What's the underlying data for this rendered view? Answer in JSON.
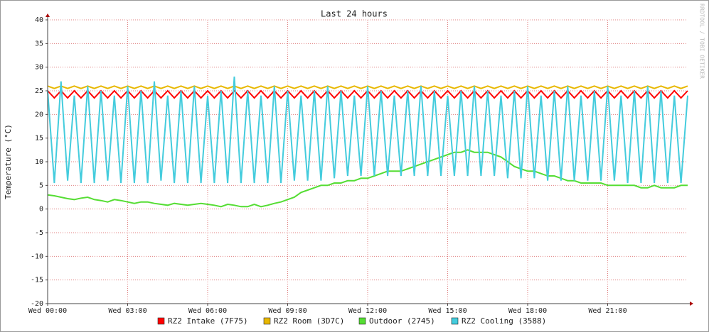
{
  "chart_data": {
    "type": "line",
    "title": "Last 24 hours",
    "y_label": "Temperature (°C)",
    "watermark": "RRDTOOL / TOBI OETIKER",
    "xlim": [
      0,
      24
    ],
    "xticks": [
      {
        "value": 0,
        "label": "Wed 00:00"
      },
      {
        "value": 3,
        "label": "Wed 03:00"
      },
      {
        "value": 6,
        "label": "Wed 06:00"
      },
      {
        "value": 9,
        "label": "Wed 09:00"
      },
      {
        "value": 12,
        "label": "Wed 12:00"
      },
      {
        "value": 15,
        "label": "Wed 15:00"
      },
      {
        "value": 18,
        "label": "Wed 18:00"
      },
      {
        "value": 21,
        "label": "Wed 21:00"
      }
    ],
    "ylim": [
      -20,
      40
    ],
    "yticks": [
      -20,
      -15,
      -10,
      -5,
      0,
      5,
      10,
      15,
      20,
      25,
      30,
      35,
      40
    ],
    "grid": true,
    "legend": "bottom",
    "x": [
      0,
      0.25,
      0.5,
      0.75,
      1,
      1.25,
      1.5,
      1.75,
      2,
      2.25,
      2.5,
      2.75,
      3,
      3.25,
      3.5,
      3.75,
      4,
      4.25,
      4.5,
      4.75,
      5,
      5.25,
      5.5,
      5.75,
      6,
      6.25,
      6.5,
      6.75,
      7,
      7.25,
      7.5,
      7.75,
      8,
      8.25,
      8.5,
      8.75,
      9,
      9.25,
      9.5,
      9.75,
      10,
      10.25,
      10.5,
      10.75,
      11,
      11.25,
      11.5,
      11.75,
      12,
      12.25,
      12.5,
      12.75,
      13,
      13.25,
      13.5,
      13.75,
      14,
      14.25,
      14.5,
      14.75,
      15,
      15.25,
      15.5,
      15.75,
      16,
      16.25,
      16.5,
      16.75,
      17,
      17.25,
      17.5,
      17.75,
      18,
      18.25,
      18.5,
      18.75,
      19,
      19.25,
      19.5,
      19.75,
      20,
      20.25,
      20.5,
      20.75,
      21,
      21.25,
      21.5,
      21.75,
      22,
      22.25,
      22.5,
      22.75,
      23,
      23.25,
      23.5,
      23.75,
      24
    ],
    "series": [
      {
        "name": "RZ2 Intake (7F75)",
        "color": "#ff0000",
        "values": [
          25,
          23.5,
          25,
          23.5,
          25,
          23.5,
          25,
          23.5,
          25,
          23.5,
          25,
          23.5,
          25,
          23.5,
          25,
          23.5,
          25,
          23.5,
          25,
          23.5,
          25,
          23.5,
          25,
          23.5,
          25,
          23.5,
          25,
          23.5,
          25,
          23.5,
          25,
          23.5,
          25,
          23.5,
          25,
          23.5,
          25,
          23.5,
          25,
          23.5,
          25,
          23.5,
          25,
          23.5,
          25,
          23.5,
          25,
          23.5,
          25,
          23.5,
          25,
          23.5,
          25,
          23.5,
          25,
          23.5,
          25,
          23.5,
          25,
          23.5,
          25,
          23.5,
          25,
          23.5,
          25,
          23.5,
          25,
          23.5,
          25,
          23.5,
          25,
          23.5,
          25,
          23.5,
          25,
          23.5,
          25,
          23.5,
          25,
          23.5,
          25,
          23.5,
          25,
          23.5,
          25,
          23.5,
          25,
          23.5,
          25,
          23.5,
          25,
          23.5,
          25,
          23.5,
          25,
          23.5,
          25
        ]
      },
      {
        "name": "RZ2 Room (3D7C)",
        "color": "#e8b800",
        "values": [
          26,
          25.5,
          26,
          25.5,
          26,
          25.5,
          26,
          25.5,
          26,
          25.5,
          26,
          25.5,
          26,
          25.5,
          26,
          25.5,
          26,
          25.5,
          26,
          25.5,
          26,
          25.5,
          26,
          25.5,
          26,
          25.5,
          26,
          25.5,
          26,
          25.5,
          26,
          25.5,
          26,
          25.5,
          26,
          25.5,
          26,
          25.5,
          26,
          25.5,
          26,
          25.5,
          26,
          25.5,
          26,
          25.5,
          26,
          25.5,
          26,
          25.5,
          26,
          25.5,
          26,
          25.5,
          26,
          25.5,
          26,
          25.5,
          26,
          25.5,
          26,
          25.5,
          26,
          25.5,
          26,
          25.5,
          26,
          25.5,
          26,
          25.5,
          26,
          25.5,
          26,
          25.5,
          26,
          25.5,
          26,
          25.5,
          26,
          25.5,
          26,
          25.5,
          26,
          25.5,
          26,
          25.5,
          26,
          25.5,
          26,
          25.5,
          26,
          25.5,
          26,
          25.5,
          26,
          25.5,
          26
        ]
      },
      {
        "name": "Outdoor (2745)",
        "color": "#55dd33",
        "values": [
          3,
          2.8,
          2.5,
          2.2,
          2,
          2.3,
          2.5,
          2,
          1.8,
          1.5,
          2,
          1.8,
          1.5,
          1.2,
          1.5,
          1.5,
          1.2,
          1,
          0.8,
          1.2,
          1,
          0.8,
          1,
          1.2,
          1,
          0.8,
          0.5,
          1,
          0.8,
          0.5,
          0.5,
          1,
          0.5,
          0.8,
          1.2,
          1.5,
          2,
          2.5,
          3.5,
          4,
          4.5,
          5,
          5,
          5.5,
          5.5,
          6,
          6,
          6.5,
          6.5,
          7,
          7.5,
          8,
          8,
          8,
          8.5,
          9,
          9.5,
          10,
          10.5,
          11,
          11.5,
          12,
          12,
          12.5,
          12,
          12,
          12,
          11.5,
          11,
          10,
          9,
          8.5,
          8,
          8,
          7.5,
          7,
          7,
          6.5,
          6,
          6,
          5.5,
          5.5,
          5.5,
          5.5,
          5,
          5,
          5,
          5,
          5,
          4.5,
          4.5,
          5,
          4.5,
          4.5,
          4.5,
          5,
          5
        ]
      },
      {
        "name": "RZ2 Cooling (3588)",
        "color": "#44ccdd",
        "values": [
          25,
          5.5,
          27,
          6,
          24,
          5.5,
          26,
          5.5,
          25,
          6,
          24,
          5.5,
          26,
          5.5,
          25,
          5.5,
          27,
          6,
          24,
          5.5,
          25,
          5.5,
          26,
          5.5,
          24,
          5.5,
          25,
          5.5,
          28,
          5.5,
          25,
          5.5,
          24,
          5.5,
          26,
          5.5,
          25,
          6,
          24,
          6,
          25,
          6,
          26,
          6.5,
          25,
          7,
          24,
          7,
          26,
          7,
          25,
          7,
          24,
          7,
          25,
          7,
          26,
          7,
          25,
          7,
          24,
          7,
          25,
          7,
          26,
          7,
          25,
          7,
          24,
          6.5,
          25,
          6.5,
          26,
          6.5,
          24,
          6,
          25,
          6,
          26,
          6,
          24,
          6,
          25,
          6,
          26,
          6,
          24,
          5.5,
          25,
          5.5,
          26,
          5.5,
          25,
          5.5,
          24,
          5.5,
          24
        ]
      }
    ]
  }
}
